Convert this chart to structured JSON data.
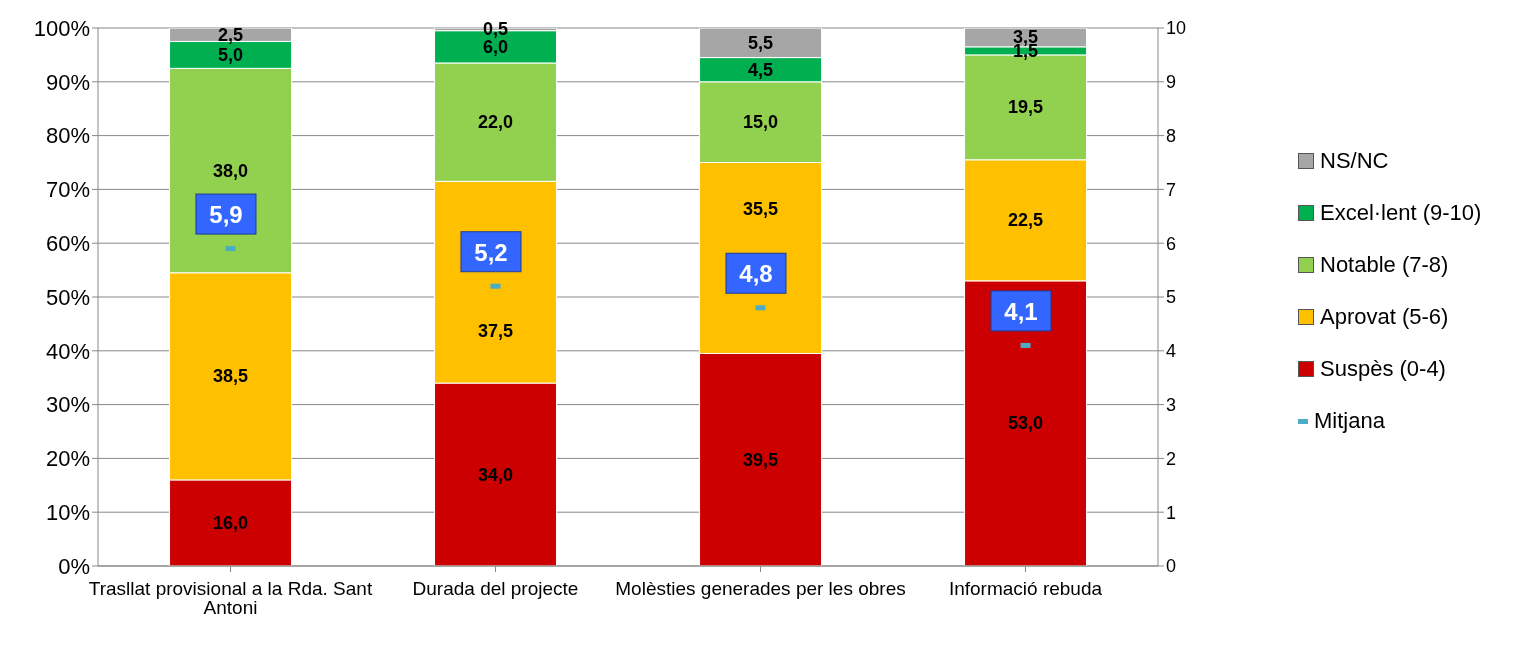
{
  "chart_data": {
    "type": "bar",
    "stacked": true,
    "categories": [
      "Trasllat provisional a la Rda. Sant Antoni",
      "Durada del projecte",
      "Molèsties generades per les obres",
      "Informació rebuda"
    ],
    "series": [
      {
        "name": "Suspès (0-4)",
        "color": "#cc0000",
        "values": [
          16.0,
          34.0,
          39.5,
          53.0
        ],
        "value_labels": [
          "16,0",
          "34,0",
          "39,5",
          "53,0"
        ]
      },
      {
        "name": "Aprovat (5-6)",
        "color": "#ffc000",
        "values": [
          38.5,
          37.5,
          35.5,
          22.5
        ],
        "value_labels": [
          "38,5",
          "37,5",
          "35,5",
          "22,5"
        ]
      },
      {
        "name": "Notable (7-8)",
        "color": "#92d050",
        "values": [
          38.0,
          22.0,
          15.0,
          19.5
        ],
        "value_labels": [
          "38,0",
          "22,0",
          "15,0",
          "19,5"
        ]
      },
      {
        "name": "Excel·lent (9-10)",
        "color": "#00b050",
        "values": [
          5.0,
          6.0,
          4.5,
          1.5
        ],
        "value_labels": [
          "5,0",
          "6,0",
          "4,5",
          "1,5"
        ]
      },
      {
        "name": "NS/NC",
        "color": "#a6a6a6",
        "values": [
          2.5,
          0.5,
          5.5,
          3.5
        ],
        "value_labels": [
          "2,5",
          "0,5",
          "5,5",
          "3,5"
        ]
      },
      {
        "name": "Mitjana",
        "type": "scatter",
        "axis": "y2",
        "color": "#4bacc6",
        "values": [
          5.9,
          5.2,
          4.8,
          4.1
        ],
        "value_labels": [
          "5,9",
          "5,2",
          "4,8",
          "4,1"
        ]
      }
    ],
    "ylim": [
      0,
      100
    ],
    "yticks": [
      {
        "value": 0,
        "label": "0%"
      },
      {
        "value": 10,
        "label": "10%"
      },
      {
        "value": 20,
        "label": "20%"
      },
      {
        "value": 30,
        "label": "30%"
      },
      {
        "value": 40,
        "label": "40%"
      },
      {
        "value": 50,
        "label": "50%"
      },
      {
        "value": 60,
        "label": "60%"
      },
      {
        "value": 70,
        "label": "70%"
      },
      {
        "value": 80,
        "label": "80%"
      },
      {
        "value": 90,
        "label": "90%"
      },
      {
        "value": 100,
        "label": "100%"
      }
    ],
    "y2lim": [
      0,
      10
    ],
    "y2ticks": [
      0,
      1,
      2,
      3,
      4,
      5,
      6,
      7,
      8,
      9,
      10
    ],
    "grid": "y",
    "legend": "right"
  }
}
